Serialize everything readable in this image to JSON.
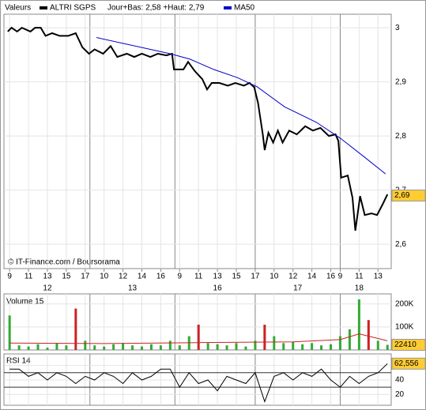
{
  "chart_data": [
    {
      "type": "line",
      "legend_title": "Valeurs",
      "subtitle": "Jour+Bas: 2,58 +Haut: 2,79",
      "series": [
        {
          "name": "ALTRI SGPS",
          "color": "#000000",
          "x": [
            -0.2,
            0.2,
            0.8,
            1.3,
            2.2,
            2.7,
            3.3,
            3.8,
            4.5,
            5.3,
            6.2,
            7.0,
            7.7,
            8.4,
            9.0,
            9.9,
            10.7,
            11.4,
            12.4,
            13.2,
            14.0,
            14.9,
            15.7,
            16.6,
            17.2,
            17.4,
            18.4,
            18.9,
            19.6,
            20.4,
            20.9,
            21.4,
            22.2,
            23.1,
            23.9,
            24.8,
            25.4,
            25.9,
            26.3,
            26.8,
            27.0,
            27.4,
            27.9,
            28.4,
            28.9,
            29.6,
            30.4,
            31.3,
            32.1,
            32.9,
            33.8,
            34.5,
            34.8,
            35.1,
            35.8,
            36.3,
            36.6,
            37.1,
            37.6,
            38.3,
            38.9,
            39.5,
            40.0
          ],
          "values": [
            2.993,
            3.0,
            2.993,
            3.0,
            2.993,
            3.0,
            3.0,
            2.985,
            2.99,
            2.985,
            2.985,
            2.99,
            2.964,
            2.952,
            2.96,
            2.952,
            2.966,
            2.946,
            2.952,
            2.946,
            2.952,
            2.946,
            2.952,
            2.949,
            2.952,
            2.923,
            2.923,
            2.937,
            2.92,
            2.905,
            2.886,
            2.898,
            2.898,
            2.893,
            2.898,
            2.893,
            2.898,
            2.89,
            2.861,
            2.803,
            2.774,
            2.806,
            2.788,
            2.81,
            2.788,
            2.81,
            2.803,
            2.818,
            2.81,
            2.815,
            2.8,
            2.803,
            2.791,
            2.723,
            2.727,
            2.686,
            2.625,
            2.689,
            2.654,
            2.657,
            2.654,
            2.674,
            2.692
          ]
        },
        {
          "name": "MA50",
          "color": "#0000cc",
          "x": [
            9.2,
            17.0,
            19.1,
            21.6,
            24.1,
            26.2,
            29.1,
            32.5,
            35.0,
            37.5,
            39.8
          ],
          "values": [
            2.982,
            2.952,
            2.942,
            2.923,
            2.908,
            2.891,
            2.854,
            2.825,
            2.796,
            2.762,
            2.73
          ]
        }
      ],
      "xlim": [
        -0.6,
        40.4
      ],
      "xticks": [
        {
          "value": 0,
          "label": "9"
        },
        {
          "value": 2,
          "label": "11"
        },
        {
          "value": 4,
          "label": "13"
        },
        {
          "value": 6,
          "label": "15"
        },
        {
          "value": 8,
          "label": "17"
        },
        {
          "value": 10,
          "label": "10"
        },
        {
          "value": 12,
          "label": "12"
        },
        {
          "value": 14,
          "label": "14"
        },
        {
          "value": 16,
          "label": "16"
        },
        {
          "value": 18,
          "label": "9"
        },
        {
          "value": 20,
          "label": "11"
        },
        {
          "value": 22,
          "label": "13"
        },
        {
          "value": 24,
          "label": "15"
        },
        {
          "value": 26,
          "label": "17"
        },
        {
          "value": 28,
          "label": "10"
        },
        {
          "value": 30,
          "label": "12"
        },
        {
          "value": 32,
          "label": "14"
        },
        {
          "value": 34,
          "label": "16"
        },
        {
          "value": 35,
          "label": "9"
        },
        {
          "value": 37,
          "label": "11"
        },
        {
          "value": 39,
          "label": "13"
        }
      ],
      "period_labels": [
        {
          "value": 4,
          "label": "12"
        },
        {
          "value": 13,
          "label": "13"
        },
        {
          "value": 22,
          "label": "16"
        },
        {
          "value": 30.5,
          "label": "17"
        },
        {
          "value": 37,
          "label": "18"
        }
      ],
      "separators": [
        8.5,
        17.5,
        26,
        35
      ],
      "ylim": [
        2.555,
        3.025
      ],
      "yticks": [
        3,
        {
          "value": 2.9,
          "label": "2,9"
        },
        {
          "value": 2.8,
          "label": "2,8"
        },
        {
          "value": 2.7,
          "label": "2,7"
        },
        {
          "value": 2.6,
          "label": "2,6"
        }
      ],
      "last_value": 2.69,
      "last_value_label": "2,69",
      "source": "© IT-Finance.com / Boursorama"
    },
    {
      "type": "bar",
      "title": "Volume 15",
      "x": [
        0,
        1,
        2,
        3,
        4,
        5,
        6,
        7,
        8,
        9,
        10,
        11,
        12,
        13,
        14,
        15,
        16,
        17,
        18,
        19,
        20,
        21,
        22,
        23,
        24,
        25,
        26,
        27,
        28,
        29,
        30,
        31,
        32,
        33,
        34,
        35,
        36,
        37,
        38,
        39,
        40
      ],
      "values": [
        150000,
        20000,
        15000,
        25000,
        10000,
        30000,
        20000,
        180000,
        40000,
        20000,
        15000,
        25000,
        30000,
        20000,
        15000,
        25000,
        20000,
        40000,
        20000,
        60000,
        110000,
        30000,
        25000,
        20000,
        30000,
        15000,
        40000,
        110000,
        60000,
        30000,
        35000,
        25000,
        30000,
        20000,
        25000,
        60000,
        90000,
        220000,
        130000,
        40000,
        22410
      ],
      "colors": [
        "#33aa33",
        "#33aa33",
        "#33aa33",
        "#33aa33",
        "#33aa33",
        "#33aa33",
        "#33aa33",
        "#cc2222",
        "#33aa33",
        "#33aa33",
        "#33aa33",
        "#33aa33",
        "#33aa33",
        "#33aa33",
        "#33aa33",
        "#33aa33",
        "#33aa33",
        "#33aa33",
        "#33aa33",
        "#33aa33",
        "#cc2222",
        "#33aa33",
        "#33aa33",
        "#33aa33",
        "#33aa33",
        "#33aa33",
        "#33aa33",
        "#cc2222",
        "#33aa33",
        "#33aa33",
        "#33aa33",
        "#33aa33",
        "#33aa33",
        "#33aa33",
        "#33aa33",
        "#33aa33",
        "#33aa33",
        "#33aa33",
        "#cc2222",
        "#33aa33",
        "#33aa33"
      ],
      "ma": {
        "color": "#cc2222",
        "x": [
          0,
          10,
          20,
          30,
          35,
          37,
          40
        ],
        "values": [
          30000,
          28000,
          32000,
          35000,
          45000,
          70000,
          40000
        ]
      },
      "ylim": [
        0,
        244000
      ],
      "yticks": [
        {
          "value": 200000,
          "label": "200K"
        },
        {
          "value": 100000,
          "label": "100K"
        }
      ],
      "last_value": 22410
    },
    {
      "type": "line",
      "title": "RSI 14",
      "color": "#000000",
      "x": [
        0,
        1,
        2,
        3,
        4,
        5,
        6,
        7,
        8,
        9,
        10,
        11,
        12,
        13,
        14,
        15,
        16,
        17,
        18,
        19,
        20,
        21,
        22,
        23,
        24,
        25,
        26,
        27,
        28,
        29,
        30,
        31,
        32,
        33,
        34,
        35,
        36,
        37,
        38,
        39,
        40
      ],
      "values": [
        55,
        55,
        45,
        50,
        40,
        50,
        45,
        35,
        45,
        40,
        50,
        45,
        35,
        50,
        40,
        45,
        55,
        55,
        30,
        50,
        35,
        40,
        25,
        45,
        40,
        35,
        50,
        10,
        45,
        50,
        40,
        50,
        45,
        55,
        40,
        30,
        45,
        35,
        45,
        50,
        62.556
      ],
      "levels": [
        30,
        50
      ],
      "ylim": [
        5,
        76
      ],
      "yticks": [
        60,
        40,
        20
      ],
      "last_value": 62.556,
      "last_value_label": "62,556"
    }
  ]
}
